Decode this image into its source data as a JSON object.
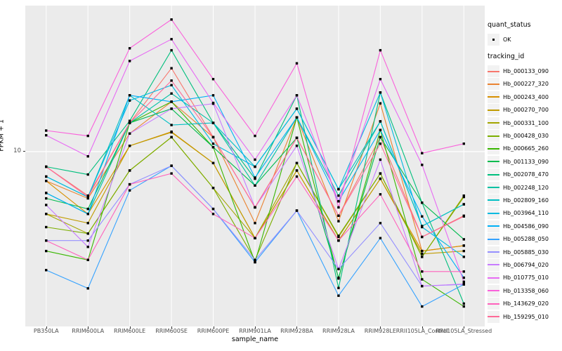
{
  "axes": {
    "x": {
      "title": "sample_name"
    },
    "y": {
      "title": "FPKM + 1",
      "tick_label": "10"
    }
  },
  "legend": {
    "quant_status": {
      "title": "quant_status",
      "ok_label": "OK",
      "point_color": "#000000"
    },
    "tracking_id": {
      "title": "tracking_id"
    }
  },
  "chart_data": {
    "type": "line",
    "title": "",
    "xlabel": "sample_name",
    "ylabel": "FPKM + 1",
    "yscale": "log10",
    "ylim": [
      1.05,
      68
    ],
    "y_ticks": [
      10
    ],
    "grid": "major-white-on-gray",
    "legend_position": "right",
    "point_color": "#000000",
    "categories": [
      "PB350LA",
      "RRIM600LA",
      "RRIM600LE",
      "RRIM600SE",
      "RRIM600PE",
      "RRIM901LA",
      "RRIM928BA",
      "RRIM928LA",
      "RRIM928LE",
      "RRII105LA_Control",
      "RRII105LA_Stressed"
    ],
    "series": [
      {
        "name": "Hb_000133_090",
        "color": "#F8766D",
        "values": [
          8.2,
          5.6,
          14.6,
          30,
          12.1,
          4.8,
          12.0,
          4.3,
          12.1,
          3.25,
          4.3
        ]
      },
      {
        "name": "Hb_000227_320",
        "color": "#EA8331",
        "values": [
          6.8,
          5.4,
          12.7,
          19.3,
          12.1,
          3.9,
          15.7,
          4.0,
          18.9,
          2.7,
          2.9
        ]
      },
      {
        "name": "Hb_000243_400",
        "color": "#D89000",
        "values": [
          6.8,
          4.4,
          10.8,
          13.0,
          8.6,
          3.2,
          7.8,
          3.1,
          7.0,
          2.7,
          2.9
        ]
      },
      {
        "name": "Hb_000270_700",
        "color": "#C09B00",
        "values": [
          4.4,
          3.9,
          10.8,
          12.9,
          8.6,
          3.2,
          7.8,
          3.1,
          7.0,
          2.6,
          2.7
        ]
      },
      {
        "name": "Hb_000331_100",
        "color": "#A3A500",
        "values": [
          4.4,
          3.4,
          7.8,
          12.1,
          6.2,
          3.2,
          8.6,
          3.25,
          7.5,
          2.5,
          5.6
        ]
      },
      {
        "name": "Hb_000428_030",
        "color": "#7CAE00",
        "values": [
          3.7,
          3.4,
          7.8,
          12.1,
          6.2,
          2.4,
          8.6,
          3.3,
          7.5,
          2.5,
          5.5
        ]
      },
      {
        "name": "Hb_000665_260",
        "color": "#39B600",
        "values": [
          2.7,
          2.4,
          14.6,
          19.3,
          10.6,
          2.33,
          15.7,
          1.88,
          13.3,
          1.86,
          1.3
        ]
      },
      {
        "name": "Hb_001133_090",
        "color": "#00BB4E",
        "values": [
          5.4,
          4.7,
          14.6,
          17.6,
          10.6,
          6.4,
          12.0,
          1.9,
          12.1,
          5.1,
          3.15
        ]
      },
      {
        "name": "Hb_002078_470",
        "color": "#00BF7D",
        "values": [
          8.2,
          7.4,
          15.0,
          38,
          14.6,
          7.0,
          21.0,
          1.66,
          21.8,
          5.1,
          1.35
        ]
      },
      {
        "name": "Hb_002248_120",
        "color": "#00C1A3",
        "values": [
          5.8,
          4.4,
          14.6,
          21.5,
          14.6,
          6.4,
          15.7,
          5.6,
          14.9,
          3.75,
          5.0
        ]
      },
      {
        "name": "Hb_002809_160",
        "color": "#00BFC4",
        "values": [
          7.2,
          5.5,
          21.0,
          14.2,
          14.6,
          8.2,
          17.6,
          6.1,
          14.9,
          3.75,
          5.0
        ]
      },
      {
        "name": "Hb_003964_110",
        "color": "#00BAE0",
        "values": [
          7.2,
          5.5,
          19.6,
          24.0,
          11.1,
          8.2,
          17.6,
          6.1,
          21.8,
          3.7,
          2.5
        ]
      },
      {
        "name": "Hb_004586_090",
        "color": "#00B0F6",
        "values": [
          5.8,
          4.4,
          21.0,
          19.3,
          21.0,
          7.1,
          15.7,
          5.2,
          13.3,
          4.26,
          1.9
        ]
      },
      {
        "name": "Hb_005288_050",
        "color": "#35A2FF",
        "values": [
          2.1,
          1.65,
          6.0,
          8.3,
          4.7,
          2.33,
          4.6,
          1.5,
          3.2,
          1.3,
          1.74
        ]
      },
      {
        "name": "Hb_005885_030",
        "color": "#9590FF",
        "values": [
          3.1,
          3.1,
          6.5,
          8.3,
          4.7,
          2.4,
          4.6,
          2.13,
          3.9,
          1.7,
          1.74
        ]
      },
      {
        "name": "Hb_006794_020",
        "color": "#C77CFF",
        "values": [
          4.95,
          2.85,
          12.7,
          17.6,
          18.8,
          4.8,
          10.8,
          2.13,
          9.0,
          1.7,
          1.75
        ]
      },
      {
        "name": "Hb_010775_010",
        "color": "#E76BF3",
        "values": [
          12.4,
          9.4,
          33,
          44,
          19.0,
          9.0,
          21.0,
          5.2,
          26,
          8.4,
          1.8
        ]
      },
      {
        "name": "Hb_013358_060",
        "color": "#FA62DB",
        "values": [
          13.2,
          12.3,
          39,
          57,
          26,
          12.3,
          32,
          4.8,
          38,
          9.8,
          11.1
        ]
      },
      {
        "name": "Hb_143629_020",
        "color": "#FF62BC",
        "values": [
          3.1,
          2.4,
          6.5,
          7.5,
          4.4,
          3.2,
          7.2,
          3.1,
          5.7,
          2.06,
          2.06
        ]
      },
      {
        "name": "Hb_159295_010",
        "color": "#FF6A98",
        "values": [
          8.2,
          5.5,
          14.6,
          25.5,
          12.1,
          4.8,
          12.0,
          4.3,
          11.1,
          3.25,
          4.26
        ]
      }
    ]
  }
}
